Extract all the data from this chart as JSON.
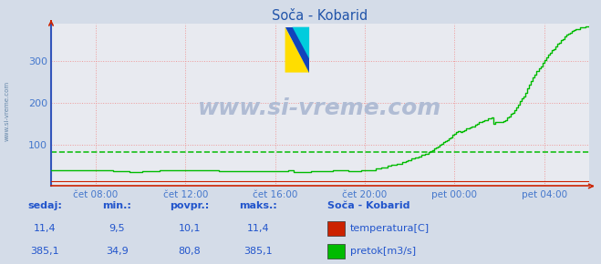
{
  "title": "Soča - Kobarid",
  "bg_color": "#d4dce8",
  "plot_bg_color": "#e8eaf0",
  "grid_color": "#ee9999",
  "xlabel_color": "#4477cc",
  "ylabel_color": "#4477cc",
  "title_color": "#2255aa",
  "watermark": "www.si-vreme.com",
  "watermark_color": "#b0bcd4",
  "x_ticks_labels": [
    "čet 08:00",
    "čet 12:00",
    "čet 16:00",
    "čet 20:00",
    "pet 00:00",
    "pet 04:00"
  ],
  "x_ticks_pos": [
    0.083,
    0.25,
    0.417,
    0.583,
    0.75,
    0.917
  ],
  "ylim": [
    0,
    390
  ],
  "yticks": [
    100,
    200,
    300
  ],
  "temp_color": "#cc2200",
  "flow_color": "#00bb00",
  "avg_flow": 80.8,
  "legend_title": "Soča - Kobarid",
  "legend_items": [
    {
      "label": "temperatura[C]",
      "color": "#cc2200"
    },
    {
      "label": "pretok[m3/s]",
      "color": "#00bb00"
    }
  ],
  "footer_labels": [
    "sedaj:",
    "min.:",
    "povpr.:",
    "maks.:"
  ],
  "footer_temp": [
    "11,4",
    "9,5",
    "10,1",
    "11,4"
  ],
  "footer_flow": [
    "385,1",
    "34,9",
    "80,8",
    "385,1"
  ],
  "axis_line_color": "#3355bb",
  "xaxis_line_color": "#cc2200"
}
